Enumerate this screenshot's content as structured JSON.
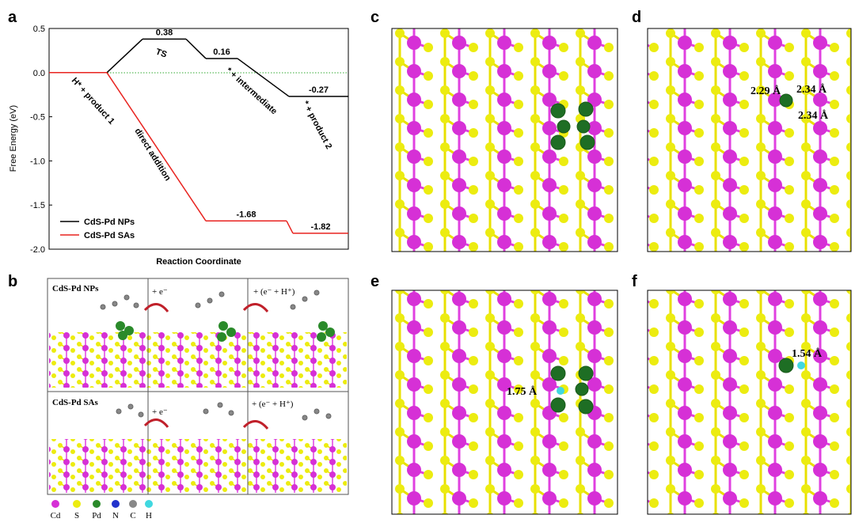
{
  "panel_labels": [
    "a",
    "b",
    "c",
    "d",
    "e",
    "f"
  ],
  "chart_data": {
    "type": "line",
    "ylabel": "Free Energy (eV)",
    "xlabel": "Reaction Coordinate",
    "ylim": [
      -2.0,
      0.5
    ],
    "yticks": [
      0.5,
      {
        "value": 0,
        "label": "0.0"
      },
      -0.5,
      {
        "value": -1,
        "label": "-1.0"
      },
      -1.5,
      {
        "value": -2,
        "label": "-2.0"
      }
    ],
    "series": [
      {
        "name": "CdS-Pd NPs",
        "color": "#000000",
        "values": [
          0,
          0.38,
          0.16,
          -0.27
        ]
      },
      {
        "name": "CdS-Pd SAs",
        "color": "#e8231f",
        "values": [
          0,
          -1.68,
          -1.82
        ]
      }
    ],
    "annotations": [
      "TS",
      "* + intermediate",
      "H* + product 1",
      "direct addition",
      "* + product 2"
    ]
  },
  "panel_b": {
    "row_labels": [
      "CdS-Pd NPs",
      "CdS-Pd SAs"
    ],
    "steps": [
      "+ e⁻",
      "+ (e⁻ + H⁺)"
    ],
    "legend": [
      "Cd",
      "S",
      "Pd",
      "N",
      "C",
      "H"
    ]
  },
  "panel_d": {
    "distances": [
      "2.29 Å",
      "2.34 Å",
      "2.34 Å"
    ]
  },
  "panel_e": {
    "distances": [
      "1.75 Å"
    ]
  },
  "panel_f": {
    "distances": [
      "1.54 Å"
    ]
  }
}
